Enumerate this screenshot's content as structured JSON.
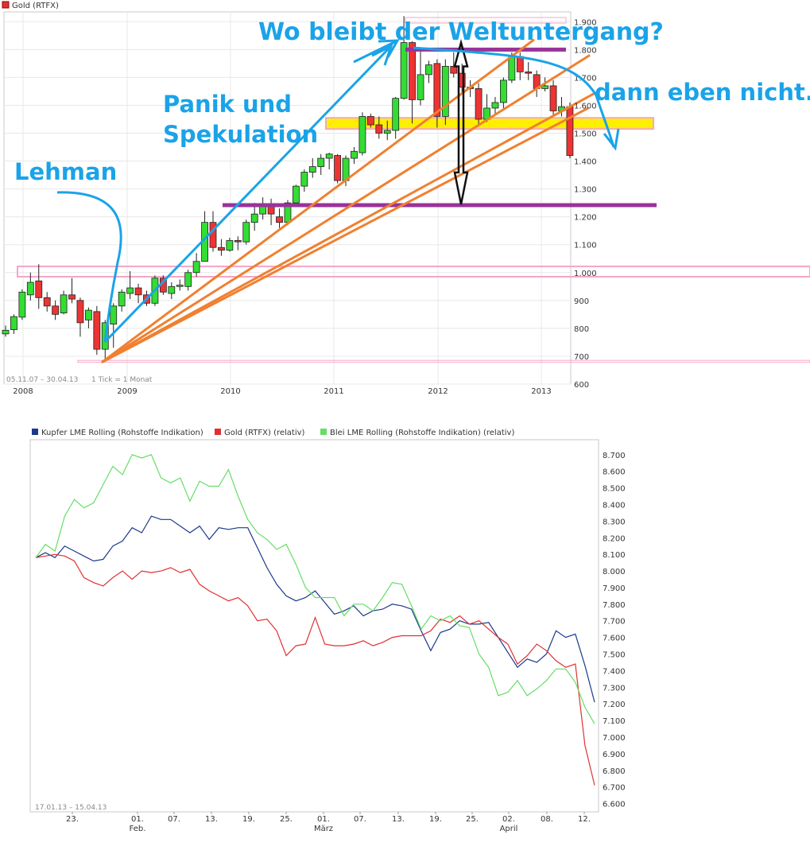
{
  "top_chart": {
    "legend": "Gold (RTFX)",
    "legend_color": "#e03030",
    "date_range": "05.11.07 – 30.04.13",
    "tick_info": "1 Tick = 1 Monat",
    "annotations": {
      "title": "Wo bleibt der Weltuntergang?",
      "panik_line1": "Panik und",
      "panik_line2": "Spekulation",
      "lehman": "Lehman",
      "dann": "dann eben nicht.."
    },
    "colors": {
      "up": "#33dd33",
      "down": "#ee3333",
      "trend": "#f08030",
      "resistance": "#993399",
      "band": "#ffee00",
      "pink": "#f4a6c8",
      "annotation": "#1aa3e8"
    }
  },
  "bottom_chart": {
    "date_range": "17.01.13 – 15.04.13",
    "legend": [
      {
        "name": "Kupfer LME Rolling (Rohstoffe Indikation)",
        "color": "#1a3a8a"
      },
      {
        "name": "Gold (RTFX) (relativ)",
        "color": "#e03030"
      },
      {
        "name": "Blei LME Rolling (Rohstoffe Indikation) (relativ)",
        "color": "#66dd66"
      }
    ]
  },
  "chart_data": [
    {
      "type": "candlestick",
      "title": "Gold (RTFX)",
      "xlabel": "",
      "ylabel": "",
      "x_ticks": [
        "2008",
        "2009",
        "2010",
        "2011",
        "2012",
        "2013"
      ],
      "y_ticks": [
        600,
        700,
        800,
        900,
        1000,
        1100,
        1200,
        1300,
        1400,
        1500,
        1600,
        1700,
        1800,
        1900
      ],
      "y_tick_labels": [
        "600",
        "700",
        "800",
        "900",
        "1.000",
        "1.100",
        "1.200",
        "1.300",
        "1.400",
        "1.500",
        "1.600",
        "1.700",
        "1.800",
        "1.900"
      ],
      "ylim": [
        600,
        1935
      ],
      "ohlc": [
        {
          "o": 780,
          "c": 793,
          "h": 810,
          "l": 770
        },
        {
          "o": 795,
          "c": 842,
          "h": 850,
          "l": 780
        },
        {
          "o": 840,
          "c": 930,
          "h": 940,
          "l": 830
        },
        {
          "o": 920,
          "c": 965,
          "h": 1000,
          "l": 900
        },
        {
          "o": 970,
          "c": 910,
          "h": 1030,
          "l": 870
        },
        {
          "o": 910,
          "c": 880,
          "h": 930,
          "l": 860
        },
        {
          "o": 880,
          "c": 850,
          "h": 900,
          "l": 830
        },
        {
          "o": 855,
          "c": 920,
          "h": 935,
          "l": 850
        },
        {
          "o": 920,
          "c": 905,
          "h": 980,
          "l": 890
        },
        {
          "o": 900,
          "c": 820,
          "h": 910,
          "l": 770
        },
        {
          "o": 830,
          "c": 865,
          "h": 875,
          "l": 800
        },
        {
          "o": 860,
          "c": 725,
          "h": 880,
          "l": 705
        },
        {
          "o": 725,
          "c": 820,
          "h": 830,
          "l": 690
        },
        {
          "o": 815,
          "c": 880,
          "h": 890,
          "l": 730
        },
        {
          "o": 880,
          "c": 930,
          "h": 940,
          "l": 860
        },
        {
          "o": 925,
          "c": 945,
          "h": 1005,
          "l": 905
        },
        {
          "o": 945,
          "c": 920,
          "h": 960,
          "l": 890
        },
        {
          "o": 920,
          "c": 890,
          "h": 935,
          "l": 880
        },
        {
          "o": 890,
          "c": 980,
          "h": 990,
          "l": 880
        },
        {
          "o": 980,
          "c": 930,
          "h": 990,
          "l": 920
        },
        {
          "o": 925,
          "c": 950,
          "h": 965,
          "l": 905
        },
        {
          "o": 950,
          "c": 955,
          "h": 975,
          "l": 935
        },
        {
          "o": 950,
          "c": 1000,
          "h": 1010,
          "l": 935
        },
        {
          "o": 1000,
          "c": 1040,
          "h": 1070,
          "l": 985
        },
        {
          "o": 1040,
          "c": 1180,
          "h": 1220,
          "l": 1040
        },
        {
          "o": 1180,
          "c": 1090,
          "h": 1220,
          "l": 1075
        },
        {
          "o": 1090,
          "c": 1080,
          "h": 1120,
          "l": 1060
        },
        {
          "o": 1080,
          "c": 1115,
          "h": 1125,
          "l": 1075
        },
        {
          "o": 1115,
          "c": 1110,
          "h": 1130,
          "l": 1080
        },
        {
          "o": 1110,
          "c": 1180,
          "h": 1190,
          "l": 1100
        },
        {
          "o": 1180,
          "c": 1210,
          "h": 1250,
          "l": 1150
        },
        {
          "o": 1210,
          "c": 1240,
          "h": 1270,
          "l": 1190
        },
        {
          "o": 1240,
          "c": 1210,
          "h": 1265,
          "l": 1170
        },
        {
          "o": 1200,
          "c": 1180,
          "h": 1230,
          "l": 1160
        },
        {
          "o": 1180,
          "c": 1250,
          "h": 1260,
          "l": 1170
        },
        {
          "o": 1250,
          "c": 1310,
          "h": 1315,
          "l": 1240
        },
        {
          "o": 1310,
          "c": 1360,
          "h": 1370,
          "l": 1290
        },
        {
          "o": 1360,
          "c": 1380,
          "h": 1410,
          "l": 1340
        },
        {
          "o": 1380,
          "c": 1410,
          "h": 1425,
          "l": 1350
        },
        {
          "o": 1410,
          "c": 1425,
          "h": 1430,
          "l": 1370
        },
        {
          "o": 1420,
          "c": 1330,
          "h": 1425,
          "l": 1320
        },
        {
          "o": 1330,
          "c": 1410,
          "h": 1420,
          "l": 1310
        },
        {
          "o": 1410,
          "c": 1435,
          "h": 1450,
          "l": 1390
        },
        {
          "o": 1430,
          "c": 1560,
          "h": 1575,
          "l": 1420
        },
        {
          "o": 1560,
          "c": 1530,
          "h": 1570,
          "l": 1520
        },
        {
          "o": 1530,
          "c": 1500,
          "h": 1560,
          "l": 1480
        },
        {
          "o": 1500,
          "c": 1510,
          "h": 1545,
          "l": 1475
        },
        {
          "o": 1510,
          "c": 1625,
          "h": 1630,
          "l": 1480
        },
        {
          "o": 1625,
          "c": 1825,
          "h": 1920,
          "l": 1620
        },
        {
          "o": 1825,
          "c": 1620,
          "h": 1830,
          "l": 1535
        },
        {
          "o": 1620,
          "c": 1710,
          "h": 1800,
          "l": 1600
        },
        {
          "o": 1710,
          "c": 1745,
          "h": 1760,
          "l": 1680
        },
        {
          "o": 1750,
          "c": 1560,
          "h": 1765,
          "l": 1520
        },
        {
          "o": 1560,
          "c": 1740,
          "h": 1765,
          "l": 1530
        },
        {
          "o": 1740,
          "c": 1715,
          "h": 1790,
          "l": 1700
        },
        {
          "o": 1715,
          "c": 1665,
          "h": 1750,
          "l": 1640
        },
        {
          "o": 1665,
          "c": 1660,
          "h": 1690,
          "l": 1630
        },
        {
          "o": 1660,
          "c": 1550,
          "h": 1680,
          "l": 1530
        },
        {
          "o": 1550,
          "c": 1590,
          "h": 1640,
          "l": 1540
        },
        {
          "o": 1590,
          "c": 1610,
          "h": 1630,
          "l": 1570
        },
        {
          "o": 1610,
          "c": 1690,
          "h": 1700,
          "l": 1590
        },
        {
          "o": 1690,
          "c": 1775,
          "h": 1790,
          "l": 1680
        },
        {
          "o": 1775,
          "c": 1720,
          "h": 1790,
          "l": 1690
        },
        {
          "o": 1720,
          "c": 1715,
          "h": 1755,
          "l": 1690
        },
        {
          "o": 1710,
          "c": 1660,
          "h": 1725,
          "l": 1630
        },
        {
          "o": 1660,
          "c": 1670,
          "h": 1700,
          "l": 1650
        },
        {
          "o": 1670,
          "c": 1580,
          "h": 1690,
          "l": 1560
        },
        {
          "o": 1580,
          "c": 1595,
          "h": 1630,
          "l": 1560
        },
        {
          "o": 1595,
          "c": 1420,
          "h": 1610,
          "l": 1410
        }
      ]
    },
    {
      "type": "line",
      "title": "",
      "xlabel": "",
      "ylabel": "",
      "x_ticks": [
        "23.",
        "01.",
        "07.",
        "13.",
        "19.",
        "25.",
        "01.",
        "07.",
        "13.",
        "19.",
        "25.",
        "02.",
        "08.",
        "12."
      ],
      "x_month_labels": [
        "Feb.",
        "März",
        "April"
      ],
      "y_ticks": [
        6600,
        6700,
        6800,
        6900,
        7000,
        7100,
        7200,
        7300,
        7400,
        7500,
        7600,
        7700,
        7800,
        7900,
        8000,
        8100,
        8200,
        8300,
        8400,
        8500,
        8600,
        8700
      ],
      "y_tick_labels": [
        "6.600",
        "6.700",
        "6.800",
        "6.900",
        "7.000",
        "7.100",
        "7.200",
        "7.300",
        "7.400",
        "7.500",
        "7.600",
        "7.700",
        "7.800",
        "7.900",
        "8.000",
        "8.100",
        "8.200",
        "8.300",
        "8.400",
        "8.500",
        "8.600",
        "8.700"
      ],
      "ylim": [
        6550,
        8790
      ],
      "series": [
        {
          "name": "Kupfer LME Rolling (Rohstoffe Indikation)",
          "values": [
            8080,
            8110,
            8080,
            8150,
            8120,
            8090,
            8060,
            8070,
            8150,
            8180,
            8260,
            8230,
            8330,
            8310,
            8310,
            8270,
            8230,
            8270,
            8190,
            8260,
            8250,
            8260,
            8260,
            8140,
            8020,
            7920,
            7850,
            7820,
            7840,
            7880,
            7810,
            7740,
            7760,
            7790,
            7730,
            7760,
            7770,
            7800,
            7790,
            7770,
            7640,
            7520,
            7630,
            7650,
            7700,
            7680,
            7680,
            7690,
            7600,
            7510,
            7420,
            7470,
            7450,
            7500,
            7640,
            7600,
            7620,
            7430,
            7210
          ]
        },
        {
          "name": "Gold (RTFX) (relativ)",
          "values": [
            8080,
            8090,
            8100,
            8090,
            8060,
            7960,
            7930,
            7910,
            7960,
            8000,
            7950,
            8000,
            7990,
            8000,
            8020,
            7990,
            8010,
            7920,
            7880,
            7850,
            7820,
            7840,
            7790,
            7700,
            7710,
            7640,
            7490,
            7550,
            7560,
            7720,
            7560,
            7550,
            7550,
            7560,
            7580,
            7550,
            7570,
            7600,
            7610,
            7610,
            7610,
            7640,
            7710,
            7690,
            7730,
            7680,
            7700,
            7650,
            7600,
            7560,
            7440,
            7490,
            7560,
            7520,
            7460,
            7420,
            7440,
            6950,
            6710
          ]
        },
        {
          "name": "Blei LME Rolling (Rohstoffe Indikation) (relativ)",
          "values": [
            8080,
            8160,
            8120,
            8330,
            8430,
            8380,
            8410,
            8520,
            8630,
            8580,
            8700,
            8680,
            8700,
            8560,
            8530,
            8560,
            8420,
            8540,
            8510,
            8510,
            8610,
            8450,
            8310,
            8230,
            8190,
            8130,
            8160,
            8040,
            7900,
            7840,
            7840,
            7840,
            7730,
            7800,
            7800,
            7760,
            7840,
            7930,
            7920,
            7790,
            7650,
            7730,
            7700,
            7730,
            7670,
            7660,
            7500,
            7420,
            7250,
            7270,
            7340,
            7250,
            7290,
            7340,
            7410,
            7410,
            7330,
            7180,
            7080
          ]
        }
      ]
    }
  ]
}
